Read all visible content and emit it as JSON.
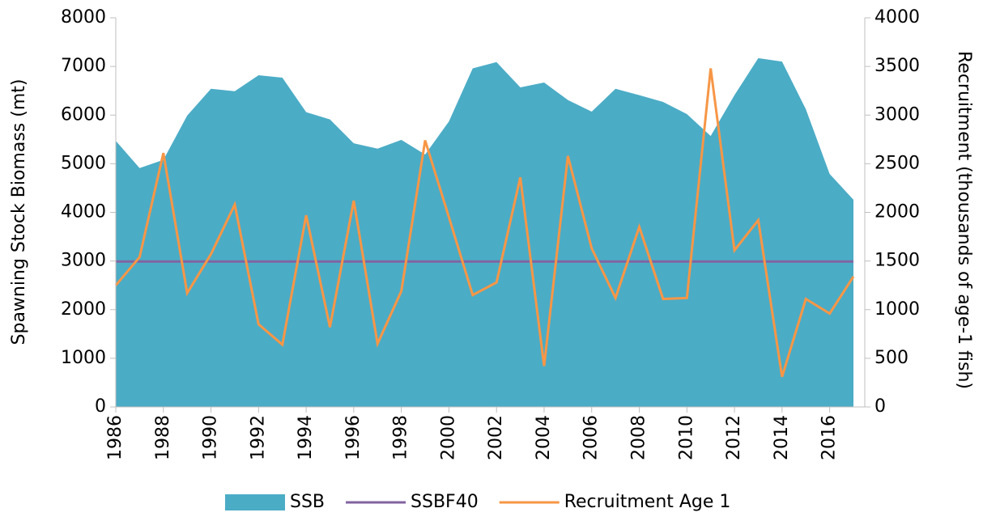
{
  "chart_data": {
    "type": "area",
    "y_label": "Spawning Stock Biomass (mt)",
    "y2_label": "Recruitment (thousands of age-1 fish)",
    "x": [
      1986,
      1987,
      1988,
      1989,
      1990,
      1991,
      1992,
      1993,
      1994,
      1995,
      1996,
      1997,
      1998,
      1999,
      2000,
      2001,
      2002,
      2003,
      2004,
      2005,
      2006,
      2007,
      2008,
      2009,
      2010,
      2011,
      2012,
      2013,
      2014,
      2015,
      2016,
      2017
    ],
    "xlim": [
      1986,
      2017
    ],
    "xticks": [
      1986,
      1988,
      1990,
      1992,
      1994,
      1996,
      1998,
      2000,
      2002,
      2004,
      2006,
      2008,
      2010,
      2012,
      2014,
      2016
    ],
    "ylim": [
      0,
      8000
    ],
    "yticks": [
      0,
      1000,
      2000,
      3000,
      4000,
      5000,
      6000,
      7000,
      8000
    ],
    "y2lim": [
      0,
      4000
    ],
    "y2ticks": [
      0,
      500,
      1000,
      1500,
      2000,
      2500,
      3000,
      3500,
      4000
    ],
    "legend": "bottom",
    "series": [
      {
        "name": "SSB",
        "type": "area",
        "color": "#4bacc6",
        "values": [
          5470,
          4910,
          5080,
          5990,
          6540,
          6490,
          6820,
          6770,
          6060,
          5910,
          5420,
          5310,
          5490,
          5190,
          5870,
          6960,
          7090,
          6570,
          6670,
          6310,
          6070,
          6540,
          6410,
          6270,
          6020,
          5570,
          6410,
          7170,
          7100,
          6120,
          4790,
          4260
        ]
      },
      {
        "name": "SSBF40",
        "type": "line",
        "color": "#8064a2",
        "values": [
          2990,
          2990,
          2990,
          2990,
          2990,
          2990,
          2990,
          2990,
          2990,
          2990,
          2990,
          2990,
          2990,
          2990,
          2990,
          2990,
          2990,
          2990,
          2990,
          2990,
          2990,
          2990,
          2990,
          2990,
          2990,
          2990,
          2990,
          2990,
          2990,
          2990,
          2990,
          2990
        ]
      },
      {
        "name": "Recruitment Age 1",
        "type": "line",
        "axis": "y2",
        "color": "#f79646",
        "values": [
          1250,
          1540,
          2610,
          1170,
          1570,
          2080,
          850,
          640,
          1970,
          820,
          2120,
          650,
          1190,
          2740,
          1950,
          1150,
          1280,
          2360,
          420,
          2580,
          1630,
          1120,
          1850,
          1110,
          1120,
          3480,
          1610,
          1920,
          310,
          1110,
          960,
          1340
        ]
      }
    ]
  }
}
